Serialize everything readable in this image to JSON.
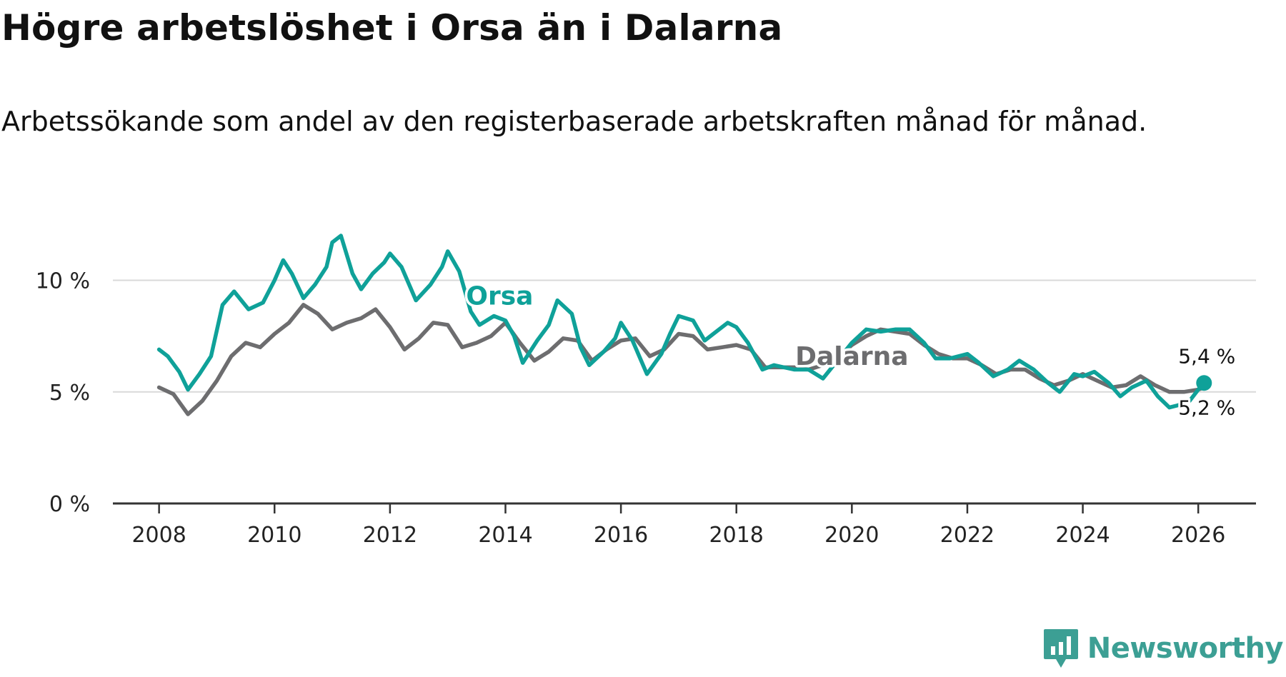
{
  "title": "Högre arbetslöshet i Orsa än i Dalarna",
  "subtitle": "Arbetssökande som andel av den registerbaserade arbetskraften månad för månad.",
  "brand": {
    "name": "Newsworthy",
    "icon": "newsworthy-logo-icon",
    "color": "#3c9f94"
  },
  "chart_data": {
    "type": "line",
    "title": "Högre arbetslöshet i Orsa än i Dalarna",
    "xlabel": "",
    "ylabel": "",
    "xlim": [
      2007.2,
      2027.0
    ],
    "ylim": [
      0,
      12
    ],
    "grid": true,
    "x_ticks": [
      {
        "value": 2008,
        "label": "2008"
      },
      {
        "value": 2010,
        "label": "2010"
      },
      {
        "value": 2012,
        "label": "2012"
      },
      {
        "value": 2014,
        "label": "2014"
      },
      {
        "value": 2016,
        "label": "2016"
      },
      {
        "value": 2018,
        "label": "2018"
      },
      {
        "value": 2020,
        "label": "2020"
      },
      {
        "value": 2022,
        "label": "2022"
      },
      {
        "value": 2024,
        "label": "2024"
      },
      {
        "value": 2026,
        "label": "2026"
      }
    ],
    "y_ticks": [
      {
        "value": 0,
        "label": "0 %"
      },
      {
        "value": 5,
        "label": "5 %"
      },
      {
        "value": 10,
        "label": "10 %"
      }
    ],
    "series": [
      {
        "name": "Dalarna",
        "color": "#6d6d6f",
        "label_at": [
          2020.0,
          6.6
        ],
        "end_label": "5,2 %",
        "points": [
          [
            2008.0,
            5.2
          ],
          [
            2008.25,
            4.9
          ],
          [
            2008.5,
            4.0
          ],
          [
            2008.75,
            4.6
          ],
          [
            2009.0,
            5.5
          ],
          [
            2009.25,
            6.6
          ],
          [
            2009.5,
            7.2
          ],
          [
            2009.75,
            7.0
          ],
          [
            2010.0,
            7.6
          ],
          [
            2010.25,
            8.1
          ],
          [
            2010.5,
            8.9
          ],
          [
            2010.75,
            8.5
          ],
          [
            2011.0,
            7.8
          ],
          [
            2011.25,
            8.1
          ],
          [
            2011.5,
            8.3
          ],
          [
            2011.75,
            8.7
          ],
          [
            2012.0,
            7.9
          ],
          [
            2012.25,
            6.9
          ],
          [
            2012.5,
            7.4
          ],
          [
            2012.75,
            8.1
          ],
          [
            2013.0,
            8.0
          ],
          [
            2013.25,
            7.0
          ],
          [
            2013.5,
            7.2
          ],
          [
            2013.75,
            7.5
          ],
          [
            2014.0,
            8.1
          ],
          [
            2014.25,
            7.2
          ],
          [
            2014.5,
            6.4
          ],
          [
            2014.75,
            6.8
          ],
          [
            2015.0,
            7.4
          ],
          [
            2015.25,
            7.3
          ],
          [
            2015.5,
            6.4
          ],
          [
            2015.75,
            6.9
          ],
          [
            2016.0,
            7.3
          ],
          [
            2016.25,
            7.4
          ],
          [
            2016.5,
            6.6
          ],
          [
            2016.75,
            6.9
          ],
          [
            2017.0,
            7.6
          ],
          [
            2017.25,
            7.5
          ],
          [
            2017.5,
            6.9
          ],
          [
            2017.75,
            7.0
          ],
          [
            2018.0,
            7.1
          ],
          [
            2018.25,
            6.9
          ],
          [
            2018.5,
            6.1
          ],
          [
            2018.75,
            6.1
          ],
          [
            2019.0,
            6.1
          ],
          [
            2019.25,
            6.0
          ],
          [
            2019.5,
            6.2
          ],
          [
            2019.75,
            6.5
          ],
          [
            2020.0,
            7.1
          ],
          [
            2020.25,
            7.5
          ],
          [
            2020.5,
            7.8
          ],
          [
            2020.75,
            7.7
          ],
          [
            2021.0,
            7.6
          ],
          [
            2021.25,
            7.1
          ],
          [
            2021.5,
            6.7
          ],
          [
            2021.75,
            6.5
          ],
          [
            2022.0,
            6.5
          ],
          [
            2022.25,
            6.2
          ],
          [
            2022.5,
            5.8
          ],
          [
            2022.75,
            6.0
          ],
          [
            2023.0,
            6.0
          ],
          [
            2023.25,
            5.6
          ],
          [
            2023.5,
            5.3
          ],
          [
            2023.75,
            5.5
          ],
          [
            2024.0,
            5.8
          ],
          [
            2024.25,
            5.5
          ],
          [
            2024.5,
            5.2
          ],
          [
            2024.75,
            5.3
          ],
          [
            2025.0,
            5.7
          ],
          [
            2025.25,
            5.3
          ],
          [
            2025.5,
            5.0
          ],
          [
            2025.75,
            5.0
          ],
          [
            2026.0,
            5.1
          ],
          [
            2026.1,
            5.2
          ]
        ]
      },
      {
        "name": "Orsa",
        "color": "#0fa199",
        "label_at": [
          2013.9,
          9.3
        ],
        "end_label": "5,4 %",
        "points": [
          [
            2008.0,
            6.9
          ],
          [
            2008.15,
            6.6
          ],
          [
            2008.35,
            5.9
          ],
          [
            2008.5,
            5.1
          ],
          [
            2008.7,
            5.8
          ],
          [
            2008.9,
            6.6
          ],
          [
            2009.1,
            8.9
          ],
          [
            2009.3,
            9.5
          ],
          [
            2009.55,
            8.7
          ],
          [
            2009.8,
            9.0
          ],
          [
            2010.0,
            10.0
          ],
          [
            2010.15,
            10.9
          ],
          [
            2010.3,
            10.3
          ],
          [
            2010.5,
            9.2
          ],
          [
            2010.7,
            9.8
          ],
          [
            2010.9,
            10.6
          ],
          [
            2011.0,
            11.7
          ],
          [
            2011.15,
            12.0
          ],
          [
            2011.35,
            10.3
          ],
          [
            2011.5,
            9.6
          ],
          [
            2011.7,
            10.3
          ],
          [
            2011.9,
            10.8
          ],
          [
            2012.0,
            11.2
          ],
          [
            2012.2,
            10.6
          ],
          [
            2012.45,
            9.1
          ],
          [
            2012.7,
            9.8
          ],
          [
            2012.9,
            10.6
          ],
          [
            2013.0,
            11.3
          ],
          [
            2013.2,
            10.4
          ],
          [
            2013.4,
            8.6
          ],
          [
            2013.55,
            8.0
          ],
          [
            2013.8,
            8.4
          ],
          [
            2014.0,
            8.2
          ],
          [
            2014.15,
            7.5
          ],
          [
            2014.3,
            6.3
          ],
          [
            2014.55,
            7.3
          ],
          [
            2014.75,
            8.0
          ],
          [
            2014.9,
            9.1
          ],
          [
            2015.15,
            8.5
          ],
          [
            2015.3,
            7.0
          ],
          [
            2015.45,
            6.2
          ],
          [
            2015.7,
            6.8
          ],
          [
            2015.9,
            7.4
          ],
          [
            2016.0,
            8.1
          ],
          [
            2016.2,
            7.3
          ],
          [
            2016.45,
            5.8
          ],
          [
            2016.7,
            6.7
          ],
          [
            2016.85,
            7.6
          ],
          [
            2017.0,
            8.4
          ],
          [
            2017.25,
            8.2
          ],
          [
            2017.45,
            7.3
          ],
          [
            2017.65,
            7.7
          ],
          [
            2017.85,
            8.1
          ],
          [
            2018.0,
            7.9
          ],
          [
            2018.2,
            7.2
          ],
          [
            2018.45,
            6.0
          ],
          [
            2018.65,
            6.2
          ],
          [
            2019.0,
            6.0
          ],
          [
            2019.25,
            6.0
          ],
          [
            2019.5,
            5.6
          ],
          [
            2019.75,
            6.4
          ],
          [
            2020.0,
            7.2
          ],
          [
            2020.25,
            7.8
          ],
          [
            2020.5,
            7.7
          ],
          [
            2020.75,
            7.8
          ],
          [
            2021.0,
            7.8
          ],
          [
            2021.25,
            7.2
          ],
          [
            2021.45,
            6.5
          ],
          [
            2021.7,
            6.5
          ],
          [
            2022.0,
            6.7
          ],
          [
            2022.2,
            6.3
          ],
          [
            2022.45,
            5.7
          ],
          [
            2022.7,
            6.0
          ],
          [
            2022.9,
            6.4
          ],
          [
            2023.15,
            6.0
          ],
          [
            2023.4,
            5.4
          ],
          [
            2023.6,
            5.0
          ],
          [
            2023.85,
            5.8
          ],
          [
            2024.0,
            5.7
          ],
          [
            2024.2,
            5.9
          ],
          [
            2024.45,
            5.4
          ],
          [
            2024.65,
            4.8
          ],
          [
            2024.85,
            5.2
          ],
          [
            2025.1,
            5.5
          ],
          [
            2025.3,
            4.8
          ],
          [
            2025.5,
            4.3
          ],
          [
            2025.65,
            4.4
          ],
          [
            2025.85,
            4.6
          ],
          [
            2026.0,
            5.1
          ],
          [
            2026.1,
            5.4
          ]
        ]
      }
    ]
  }
}
